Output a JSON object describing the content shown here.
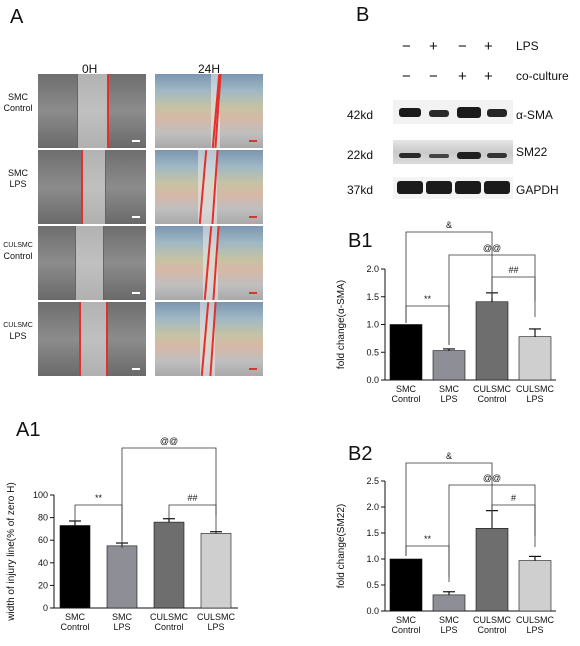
{
  "panel_a": {
    "letter": "A",
    "time_labels": [
      "0H",
      "24H"
    ],
    "rows": [
      {
        "line1": "SMC",
        "line2": "Control"
      },
      {
        "line1": "SMC",
        "line2": "LPS"
      },
      {
        "line1": "CULSMC",
        "line2": "Control"
      },
      {
        "line1": "CULSMC",
        "line2": "LPS"
      }
    ]
  },
  "panel_b": {
    "letter": "B",
    "lps_signs": [
      "−",
      "+",
      "−",
      "+"
    ],
    "coculture_signs": [
      "−",
      "−",
      "+",
      "+"
    ],
    "lps_label": "LPS",
    "coculture_label": "co-culture",
    "blots": [
      {
        "size": "42kd",
        "protein": "α-SMA"
      },
      {
        "size": "22kd",
        "protein": "SM22"
      },
      {
        "size": "37kd",
        "protein": "GAPDH"
      }
    ]
  },
  "colors": {
    "smc_control": "#000000",
    "smc_lps": "#8e8e96",
    "culsmc_control": "#6e6e6e",
    "culsmc_lps": "#cfcfcf"
  },
  "chart_data": [
    {
      "id": "A1",
      "panel_label": "A1",
      "type": "bar",
      "categories": [
        [
          "SMC",
          "Control"
        ],
        [
          "SMC",
          "LPS"
        ],
        [
          "CULSMC",
          "Control"
        ],
        [
          "CULSMC",
          "LPS"
        ]
      ],
      "values": [
        73,
        55,
        76,
        66
      ],
      "errors": [
        4,
        2.5,
        3,
        1.5
      ],
      "ylabel": "width of injury line(% of zero H)",
      "ylim": [
        0,
        100
      ],
      "yticks": [
        "0",
        "20",
        "40",
        "60",
        "80",
        "100"
      ],
      "annotations": [
        {
          "label": "**",
          "from": 0,
          "to": 1
        },
        {
          "label": "##",
          "from": 2,
          "to": 3
        },
        {
          "label": "@@",
          "from": 1,
          "to": 3
        }
      ]
    },
    {
      "id": "B1",
      "panel_label": "B1",
      "type": "bar",
      "categories": [
        [
          "SMC",
          "Control"
        ],
        [
          "SMC",
          "LPS"
        ],
        [
          "CULSMC",
          "Control"
        ],
        [
          "CULSMC",
          "LPS"
        ]
      ],
      "values": [
        1.0,
        0.53,
        1.41,
        0.78
      ],
      "errors": [
        0,
        0.03,
        0.16,
        0.14
      ],
      "ylabel": "fold change(α-SMA)",
      "ylim": [
        0,
        2.0
      ],
      "yticks": [
        "0.0",
        "0.5",
        "1.0",
        "1.5",
        "2.0"
      ],
      "annotations": [
        {
          "label": "**",
          "from": 0,
          "to": 1
        },
        {
          "label": "##",
          "from": 2,
          "to": 3
        },
        {
          "label": "@@",
          "from": 1,
          "to": 3
        },
        {
          "label": "&",
          "from": 0,
          "to": 2
        }
      ]
    },
    {
      "id": "B2",
      "panel_label": "B2",
      "type": "bar",
      "categories": [
        [
          "SMC",
          "Control"
        ],
        [
          "SMC",
          "LPS"
        ],
        [
          "CULSMC",
          "Control"
        ],
        [
          "CULSMC",
          "LPS"
        ]
      ],
      "values": [
        1.0,
        0.31,
        1.59,
        0.97
      ],
      "errors": [
        0,
        0.06,
        0.34,
        0.08
      ],
      "ylabel": "fold change(SM22)",
      "ylim": [
        0,
        2.5
      ],
      "yticks": [
        "0.0",
        "0.5",
        "1.0",
        "1.5",
        "2.0",
        "2.5"
      ],
      "annotations": [
        {
          "label": "**",
          "from": 0,
          "to": 1
        },
        {
          "label": "#",
          "from": 2,
          "to": 3
        },
        {
          "label": "@@",
          "from": 1,
          "to": 3
        },
        {
          "label": "&",
          "from": 0,
          "to": 2
        }
      ]
    }
  ]
}
